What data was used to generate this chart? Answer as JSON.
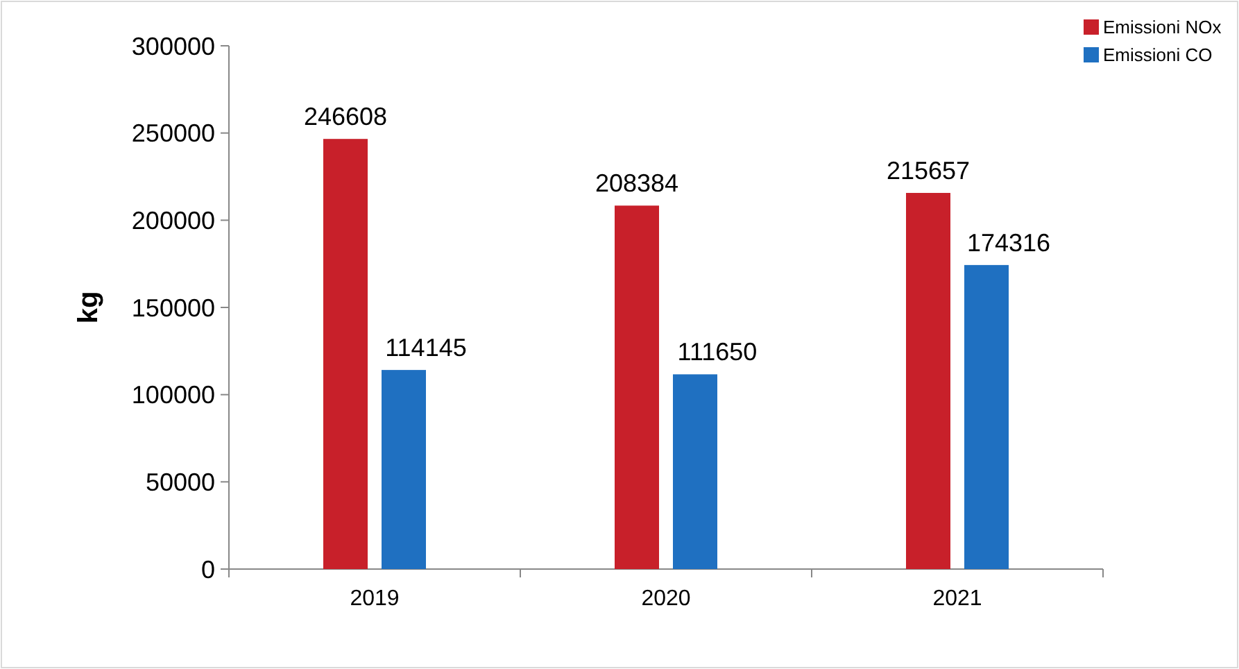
{
  "chart_data": {
    "type": "bar",
    "ylabel": "kg",
    "categories": [
      "2019",
      "2020",
      "2021"
    ],
    "series": [
      {
        "name": "Emissioni NOx",
        "color": "#c8202a",
        "values": [
          246608,
          208384,
          215657
        ]
      },
      {
        "name": "Emissioni CO",
        "color": "#1f70c1",
        "values": [
          114145,
          111650,
          174316
        ]
      }
    ],
    "ylim": [
      0,
      300000
    ],
    "yticks": [
      0,
      50000,
      100000,
      150000,
      200000,
      250000,
      300000
    ],
    "data_labels": true,
    "legend": "top right",
    "grid": false
  }
}
